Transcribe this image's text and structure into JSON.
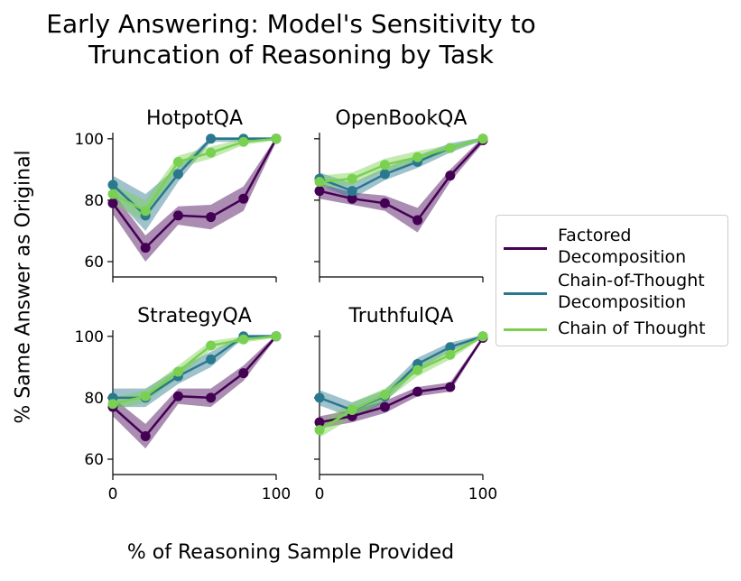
{
  "title_lines": [
    "Early Answering: Model's Sensitivity to",
    "Truncation of Reasoning by Task"
  ],
  "ylabel": "% Same Answer as Original",
  "xlabel": "% of Reasoning Sample Provided",
  "legend": {
    "items": [
      {
        "lines": [
          "Factored",
          "Decomposition"
        ],
        "color": "#440154"
      },
      {
        "lines": [
          "Chain-of-Thought",
          "Decomposition"
        ],
        "color": "#2a788e"
      },
      {
        "lines": [
          "Chain of Thought"
        ],
        "color": "#7ad151"
      }
    ]
  },
  "chart_data": [
    {
      "type": "line",
      "title": "HotpotQA",
      "x": [
        0,
        20,
        40,
        60,
        80,
        100
      ],
      "xlim": [
        0,
        100
      ],
      "ylim": [
        55,
        102
      ],
      "xticks": [
        "0",
        "100"
      ],
      "yticks": [
        "60",
        "80",
        "100"
      ],
      "series": [
        {
          "name": "Factored Decomposition",
          "values": [
            79,
            64.5,
            75,
            74.5,
            80.5,
            100
          ],
          "lower": [
            75.5,
            60,
            72,
            70.5,
            76.5,
            99
          ],
          "upper": [
            82.5,
            68.5,
            78,
            78.5,
            84.5,
            100.5
          ]
        },
        {
          "name": "Chain-of-Thought Decomposition",
          "values": [
            85,
            75,
            88.5,
            100,
            100,
            100
          ],
          "lower": [
            81.5,
            70,
            86,
            99,
            99,
            99.5
          ],
          "upper": [
            88,
            82,
            91,
            100.5,
            100.5,
            100.5
          ]
        },
        {
          "name": "Chain of Thought",
          "values": [
            82,
            76.5,
            92.5,
            95.5,
            99,
            100
          ],
          "lower": [
            79,
            73,
            90.5,
            93.5,
            98,
            99.5
          ],
          "upper": [
            85,
            80,
            94.5,
            97.5,
            100,
            100.5
          ]
        }
      ]
    },
    {
      "type": "line",
      "title": "OpenBookQA",
      "x": [
        0,
        20,
        40,
        60,
        80,
        100
      ],
      "xlim": [
        0,
        100
      ],
      "ylim": [
        55,
        102
      ],
      "xticks": [
        "0",
        "100"
      ],
      "yticks": [
        "60",
        "80",
        "100"
      ],
      "series": [
        {
          "name": "Factored Decomposition",
          "values": [
            83,
            80.5,
            79,
            73.5,
            88,
            99.5
          ],
          "lower": [
            80.5,
            78.5,
            76.5,
            69.5,
            86,
            98.5
          ],
          "upper": [
            85.5,
            82.5,
            81.5,
            77.5,
            90,
            100.5
          ]
        },
        {
          "name": "Chain-of-Thought Decomposition",
          "values": [
            87,
            83,
            88.5,
            92.5,
            97,
            100
          ],
          "lower": [
            85,
            80.5,
            86.5,
            90.5,
            95.5,
            99.5
          ],
          "upper": [
            89,
            85.5,
            90.5,
            94.5,
            98.5,
            100.5
          ]
        },
        {
          "name": "Chain of Thought",
          "values": [
            86,
            87,
            91.5,
            94,
            97,
            100
          ],
          "lower": [
            84,
            85,
            89.5,
            92,
            96,
            99.5
          ],
          "upper": [
            88,
            89,
            93.5,
            96,
            98,
            100.5
          ]
        }
      ]
    },
    {
      "type": "line",
      "title": "StrategyQA",
      "x": [
        0,
        20,
        40,
        60,
        80,
        100
      ],
      "xlim": [
        0,
        100
      ],
      "ylim": [
        55,
        102
      ],
      "xticks": [
        "0",
        "100"
      ],
      "yticks": [
        "60",
        "80",
        "100"
      ],
      "series": [
        {
          "name": "Factored Decomposition",
          "values": [
            77,
            67.5,
            80.5,
            80,
            88,
            100
          ],
          "lower": [
            74,
            63.5,
            78,
            77,
            85.5,
            99.5
          ],
          "upper": [
            80,
            71.5,
            83,
            83,
            90.5,
            100.5
          ]
        },
        {
          "name": "Chain-of-Thought Decomposition",
          "values": [
            80,
            80,
            87,
            92.5,
            100,
            100
          ],
          "lower": [
            77,
            77,
            84.5,
            90,
            99.5,
            99.5
          ],
          "upper": [
            83,
            83,
            89.5,
            95,
            100.5,
            100.5
          ]
        },
        {
          "name": "Chain of Thought",
          "values": [
            78,
            80.5,
            88.5,
            97,
            99,
            100
          ],
          "lower": [
            76,
            78.5,
            86.5,
            95.5,
            98,
            99.5
          ],
          "upper": [
            80,
            82.5,
            90.5,
            98.5,
            100,
            100.5
          ]
        }
      ]
    },
    {
      "type": "line",
      "title": "TruthfulQA",
      "x": [
        0,
        20,
        40,
        60,
        80,
        100
      ],
      "xlim": [
        0,
        100
      ],
      "ylim": [
        55,
        102
      ],
      "xticks": [
        "0",
        "100"
      ],
      "yticks": [
        "60",
        "80",
        "100"
      ],
      "series": [
        {
          "name": "Factored Decomposition",
          "values": [
            72,
            74,
            77,
            82,
            83.5,
            99.5
          ],
          "lower": [
            70,
            72,
            75,
            80.5,
            82,
            99
          ],
          "upper": [
            74,
            76,
            79,
            83.5,
            85,
            100
          ]
        },
        {
          "name": "Chain-of-Thought Decomposition",
          "values": [
            80,
            76,
            80.5,
            91,
            96.5,
            100
          ],
          "lower": [
            77.5,
            73.5,
            78.5,
            89,
            95,
            99.5
          ],
          "upper": [
            82.5,
            78.5,
            82.5,
            93,
            98,
            100.5
          ]
        },
        {
          "name": "Chain of Thought",
          "values": [
            69.5,
            76,
            81,
            89,
            94,
            100
          ],
          "lower": [
            67,
            73.5,
            79,
            87,
            92.5,
            99.5
          ],
          "upper": [
            72,
            78.5,
            83,
            91,
            95.5,
            100.5
          ]
        }
      ]
    }
  ]
}
